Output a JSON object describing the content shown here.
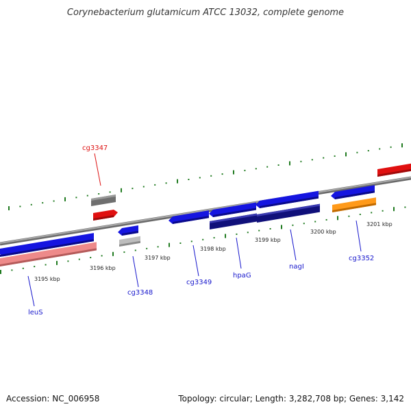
{
  "title": "Corynebacterium glutamicum ATCC 13032, complete genome",
  "footer": {
    "accession": "Accession: NC_006958",
    "summary": "Topology: circular; Length: 3,282,708 bp; Genes: 3,142"
  },
  "colors": {
    "backbone": "#8a8a8a",
    "tick": "#1f7a1f",
    "gene_blue": "#1515e0",
    "gene_dark_blue": "#10107a",
    "gene_red": "#e01010",
    "gene_pink": "#ee8a8a",
    "gene_gray": "#6f6f6f",
    "gene_light_gray": "#bdbdbd",
    "gene_orange": "#ff9a1a",
    "label_blue": "#1515cc",
    "label_red": "#dd1111"
  },
  "scale": {
    "tick_labels": [
      {
        "id": "t3195",
        "text": "3195 kbp"
      },
      {
        "id": "t3196",
        "text": "3196 kbp"
      },
      {
        "id": "t3197",
        "text": "3197 kbp"
      },
      {
        "id": "t3198",
        "text": "3198 kbp"
      },
      {
        "id": "t3199",
        "text": "3199 kbp"
      },
      {
        "id": "t3200",
        "text": "3200 kbp"
      },
      {
        "id": "t3201",
        "text": "3201 kbp"
      }
    ]
  },
  "genes": [
    {
      "id": "leuS",
      "label": "leuS",
      "color": "label_blue"
    },
    {
      "id": "cg3347",
      "label": "cg3347",
      "color": "label_red"
    },
    {
      "id": "cg3348",
      "label": "cg3348",
      "color": "label_blue"
    },
    {
      "id": "cg3349",
      "label": "cg3349",
      "color": "label_blue"
    },
    {
      "id": "hpaG",
      "label": "hpaG",
      "color": "label_blue"
    },
    {
      "id": "nagI",
      "label": "nagI",
      "color": "label_blue"
    },
    {
      "id": "cg3352",
      "label": "cg3352",
      "color": "label_blue"
    }
  ]
}
